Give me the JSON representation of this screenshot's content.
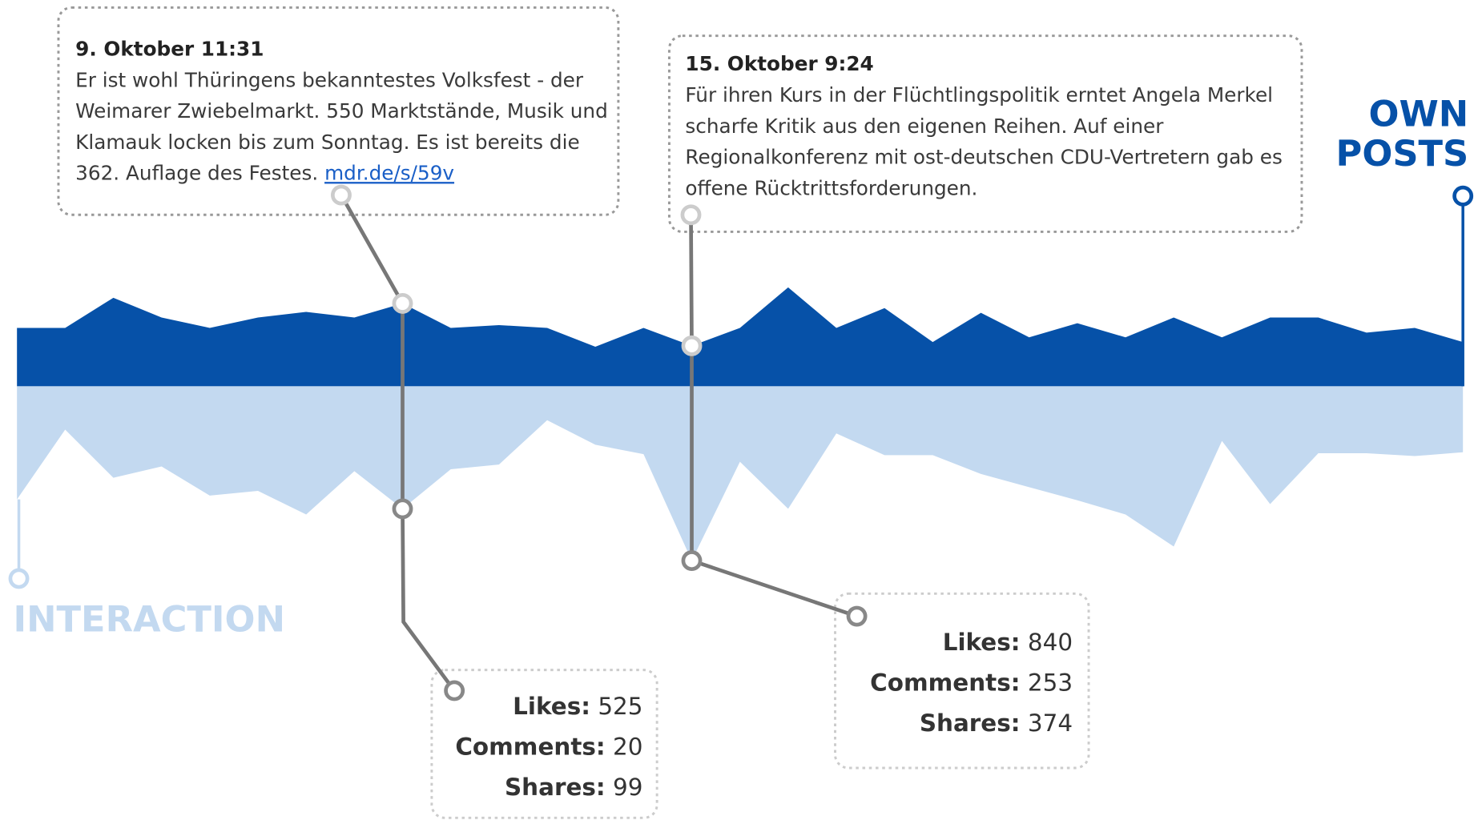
{
  "chart_data": {
    "type": "area",
    "series": [
      {
        "name": "OWN POSTS",
        "color": "#0651a8",
        "values": [
          62,
          62,
          94,
          73,
          62,
          73,
          79,
          73,
          88,
          62,
          65,
          62,
          42,
          62,
          43,
          62,
          105,
          62,
          83,
          47,
          78,
          52,
          67,
          52,
          73,
          52,
          73,
          73,
          57,
          62,
          47
        ]
      },
      {
        "name": "INTERACTION",
        "color": "#c3d9f0",
        "values": [
          120,
          46,
          97,
          85,
          116,
          111,
          136,
          90,
          130,
          88,
          83,
          36,
          62,
          72,
          185,
          80,
          130,
          50,
          73,
          73,
          93,
          107,
          121,
          136,
          170,
          58,
          125,
          71,
          71,
          74,
          70
        ]
      }
    ],
    "annotations": [
      {
        "index": 8,
        "date": "9. Oktober 11:31",
        "text": "Er ist wohl Thüringens bekanntestes Volksfest - der Weimarer Zwiebelmarkt. 550 Marktstände, Musik und Klamauk locken bis zum Sonntag. Es ist bereits die 362. Auflage des Festes.",
        "link": "mdr.de/s/59v",
        "stats": [
          {
            "label": "Likes:",
            "value": 525
          },
          {
            "label": "Comments:",
            "value": 20
          },
          {
            "label": "Shares:",
            "value": 99
          }
        ]
      },
      {
        "index": 14,
        "date": "15. Oktober 9:24",
        "text": "Für ihren Kurs in der Flüchtlingspolitik erntet Angela Merkel scharfe Kritik aus den eigenen Reihen. Auf einer Regionalkonferenz mit ost-deutschen CDU-Vertretern gab es offene Rücktrittsforderungen.",
        "stats": [
          {
            "label": "Likes:",
            "value": 840
          },
          {
            "label": "Comments:",
            "value": 253
          },
          {
            "label": "Shares:",
            "value": 374
          }
        ]
      }
    ]
  }
}
